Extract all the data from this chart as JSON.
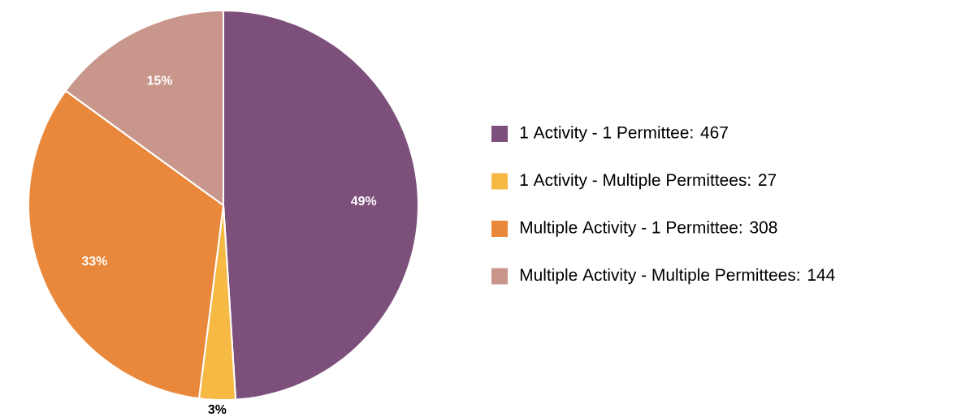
{
  "chart_data": {
    "type": "pie",
    "categories": [
      "1 Activity - 1 Permittee: 467",
      "1 Activity - Multiple Permittees: 27",
      "Multiple Activity - 1 Permittee: 308",
      "Multiple Activity - Multiple Permittees: 144"
    ],
    "values": [
      49,
      3,
      33,
      15
    ],
    "value_labels": [
      "49%",
      "3%",
      "33%",
      "15%"
    ],
    "colors": [
      "#7d4f7b",
      "#f6b944",
      "#e9883b",
      "#c9968b"
    ],
    "legend": "right"
  }
}
